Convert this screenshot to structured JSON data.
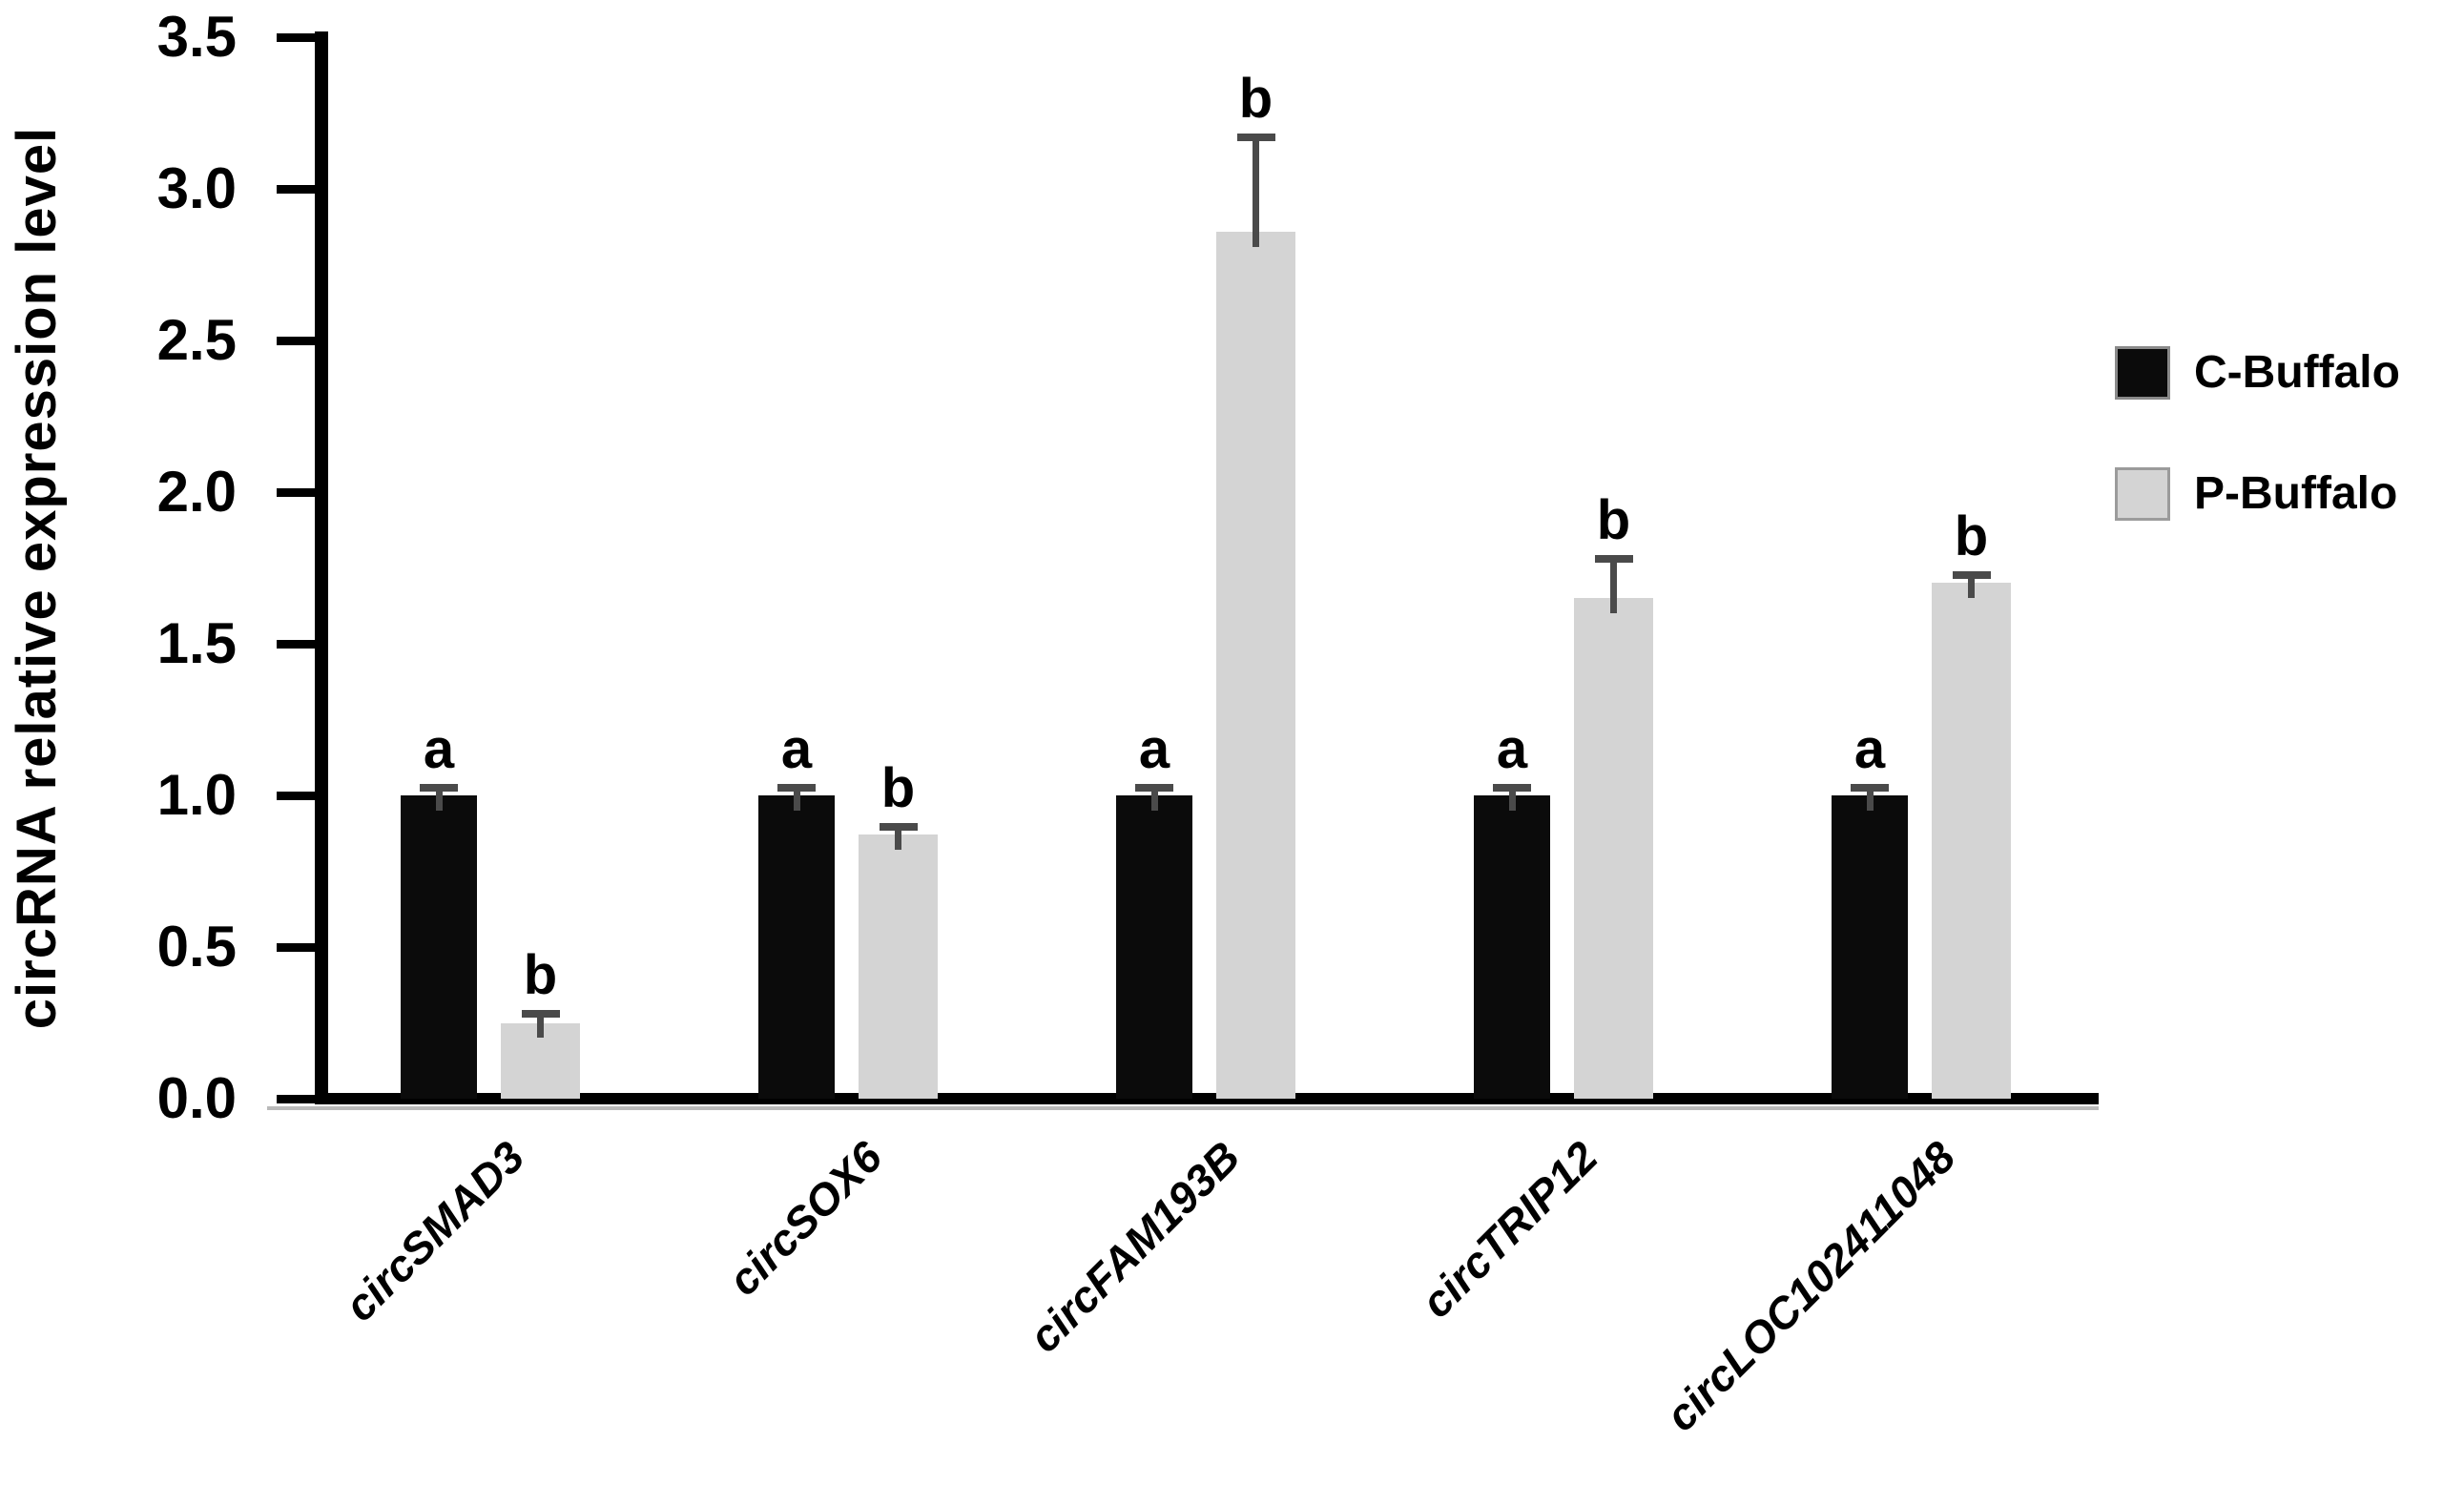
{
  "figure": {
    "background": "#ffffff",
    "y_axis": {
      "title": "circRNA relative expression level",
      "tick_labels": [
        "3.5",
        "3.0",
        "2.5",
        "2.0",
        "1.5",
        "1.0",
        "0.5",
        "0.0"
      ],
      "tick_values": [
        3.5,
        3.0,
        2.5,
        2.0,
        1.5,
        1.0,
        0.5,
        0.0
      ]
    },
    "legend": {
      "items": [
        {
          "label": "C-Buffalo",
          "color": "#0b0b0b"
        },
        {
          "label": "P-Buffalo",
          "color": "#d4d4d4"
        }
      ]
    },
    "colors": {
      "black_bar": "#0b0b0b",
      "gray_bar": "#d4d4d4",
      "error_bar": "#4a4a4a",
      "axis": "#000000"
    }
  },
  "chart_data": {
    "type": "bar",
    "title": "",
    "xlabel": "",
    "ylabel": "circRNA relative expression level",
    "ylim": [
      0.0,
      3.5
    ],
    "grid": false,
    "legend_position": "right",
    "categories": [
      "circSMAD3",
      "circSOX6",
      "circFAM193B",
      "circTRIP12",
      "circLOC102411048"
    ],
    "series": [
      {
        "name": "C-Buffalo",
        "values": [
          1.0,
          1.0,
          1.0,
          1.0,
          1.0
        ],
        "errors": [
          0.025,
          0.025,
          0.025,
          0.025,
          0.025
        ],
        "sig_letters": [
          "a",
          "a",
          "a",
          "a",
          "a"
        ]
      },
      {
        "name": "P-Buffalo",
        "values": [
          0.25,
          0.87,
          2.86,
          1.65,
          1.7
        ],
        "errors": [
          0.03,
          0.025,
          0.31,
          0.13,
          0.025
        ],
        "sig_letters": [
          "b",
          "b",
          "b",
          "b",
          "b"
        ]
      }
    ]
  }
}
